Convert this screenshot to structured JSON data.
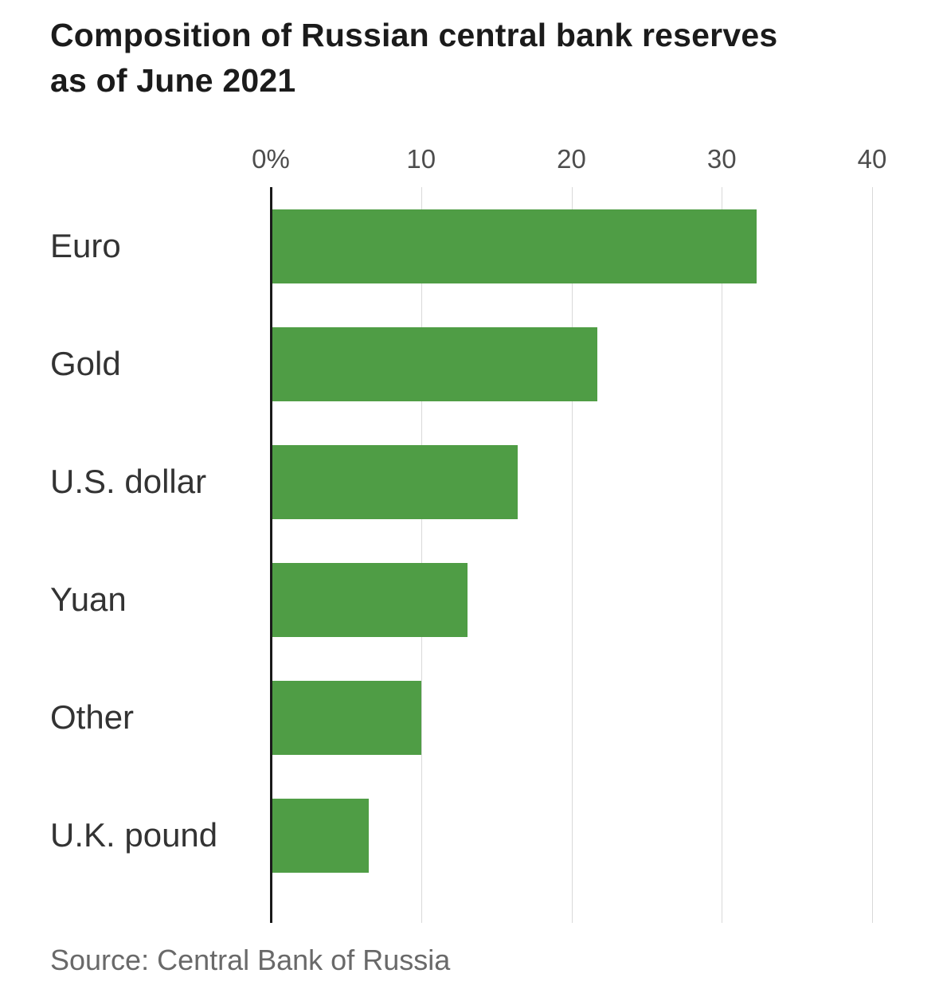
{
  "title": "Composition of Russian central bank reserves as of June 2021",
  "source": "Source: Central Bank of Russia",
  "chart_data": {
    "type": "bar",
    "orientation": "horizontal",
    "title": "Composition of Russian central bank reserves as of June 2021",
    "categories": [
      "Euro",
      "Gold",
      "U.S. dollar",
      "Yuan",
      "Other",
      "U.K. pound"
    ],
    "values": [
      32.3,
      21.7,
      16.4,
      13.1,
      10,
      6.5
    ],
    "unit": "%",
    "xlabel": "",
    "ylabel": "",
    "xlim": [
      0,
      40
    ],
    "xticks": [
      {
        "value": 0,
        "label": "0%"
      },
      {
        "value": 10,
        "label": "10"
      },
      {
        "value": 20,
        "label": "20"
      },
      {
        "value": 30,
        "label": "30"
      },
      {
        "value": 40,
        "label": "40"
      }
    ],
    "grid": true,
    "legend": false,
    "bar_color": "#4f9d45",
    "source": "Source: Central Bank of Russia"
  },
  "colors": {
    "bar": "#4f9d45",
    "axis": "#1a1a1a",
    "gridline": "#d9d9d9",
    "title_text": "#1b1b1b",
    "label_text": "#333333",
    "tick_text": "#4d4d4d",
    "source_text": "#696969"
  }
}
